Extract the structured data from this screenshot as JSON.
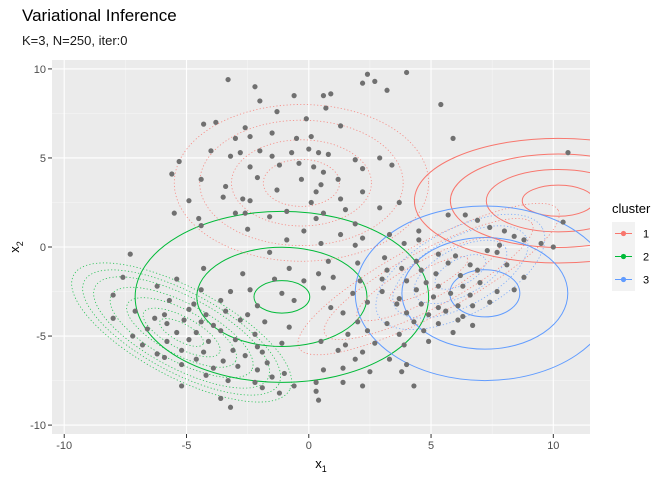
{
  "chart_data": {
    "type": "scatter",
    "title": "Variational Inference",
    "subtitle": "K=3, N=250, iter:0",
    "xlabel": {
      "base": "x",
      "sub": "1"
    },
    "ylabel": {
      "base": "x",
      "sub": "2"
    },
    "xlim": [
      -10.5,
      11.5
    ],
    "ylim": [
      -10.5,
      10.5
    ],
    "xticks": [
      -10,
      -5,
      0,
      5,
      10
    ],
    "yticks": [
      -10,
      -5,
      0,
      5,
      10
    ],
    "xtick_labels": [
      "-10",
      "-5",
      "0",
      "5",
      "10"
    ],
    "ytick_labels": [
      "-10",
      "-5",
      "0",
      "5",
      "10"
    ],
    "grid": true,
    "legend": {
      "title": "cluster",
      "position": "right",
      "entries": [
        {
          "label": "1",
          "color": "#F8766D"
        },
        {
          "label": "2",
          "color": "#00BA38"
        },
        {
          "label": "3",
          "color": "#619CFF"
        }
      ]
    },
    "point_color": "#707070",
    "points": [
      [
        -3.3,
        9.4
      ],
      [
        -2.2,
        9.0
      ],
      [
        -0.6,
        8.5
      ],
      [
        0.6,
        8.5
      ],
      [
        0.9,
        8.6
      ],
      [
        -2.0,
        8.2
      ],
      [
        -1.3,
        7.6
      ],
      [
        -0.1,
        7.2
      ],
      [
        -3.8,
        7.0
      ],
      [
        -4.3,
        6.9
      ],
      [
        -2.6,
        6.7
      ],
      [
        -3.0,
        6.1
      ],
      [
        -1.5,
        6.4
      ],
      [
        -2.4,
        6.2
      ],
      [
        -0.5,
        6.1
      ],
      [
        0.1,
        6.2
      ],
      [
        1.3,
        6.8
      ],
      [
        2.2,
        9.2
      ],
      [
        2.4,
        9.7
      ],
      [
        2.7,
        9.3
      ],
      [
        4.0,
        9.8
      ],
      [
        3.2,
        8.8
      ],
      [
        5.4,
        8.0
      ],
      [
        -4.0,
        5.4
      ],
      [
        -3.2,
        5.1
      ],
      [
        -2.8,
        5.3
      ],
      [
        -2.0,
        5.4
      ],
      [
        -1.5,
        5.1
      ],
      [
        -0.7,
        5.3
      ],
      [
        0.0,
        5.5
      ],
      [
        0.4,
        5.3
      ],
      [
        0.8,
        5.2
      ],
      [
        -5.3,
        4.8
      ],
      [
        -5.6,
        4.1
      ],
      [
        -2.4,
        4.5
      ],
      [
        -1.2,
        4.6
      ],
      [
        -0.4,
        4.7
      ],
      [
        0.2,
        4.5
      ],
      [
        0.6,
        4.2
      ],
      [
        1.9,
        4.9
      ],
      [
        2.2,
        4.4
      ],
      [
        2.9,
        5.0
      ],
      [
        3.4,
        4.6
      ],
      [
        -4.4,
        3.8
      ],
      [
        -3.4,
        3.4
      ],
      [
        -2.1,
        3.9
      ],
      [
        -0.3,
        3.8
      ],
      [
        0.5,
        3.5
      ],
      [
        1.2,
        3.8
      ],
      [
        -3.5,
        2.8
      ],
      [
        -2.4,
        2.6
      ],
      [
        -1.3,
        3.2
      ],
      [
        0.3,
        3.1
      ],
      [
        1.3,
        2.7
      ],
      [
        2.2,
        3.1
      ],
      [
        -4.9,
        2.6
      ],
      [
        -3.0,
        1.9
      ],
      [
        -0.9,
        2.0
      ],
      [
        0.1,
        2.5
      ],
      [
        0.6,
        1.9
      ],
      [
        1.5,
        2.1
      ],
      [
        2.9,
        2.2
      ],
      [
        3.7,
        2.5
      ],
      [
        -5.5,
        1.9
      ],
      [
        -4.5,
        1.6
      ],
      [
        -2.6,
        1.9
      ],
      [
        -1.6,
        1.7
      ],
      [
        0.3,
        1.6
      ],
      [
        1.9,
        1.3
      ],
      [
        -4.4,
        1.2
      ],
      [
        -2.5,
        1.0
      ],
      [
        -0.2,
        0.9
      ],
      [
        1.3,
        0.7
      ],
      [
        2.2,
        0.5
      ],
      [
        3.3,
        0.7
      ],
      [
        4.5,
        0.9
      ],
      [
        -0.9,
        0.4
      ],
      [
        0.5,
        0.2
      ],
      [
        1.9,
        0.1
      ],
      [
        3.9,
        0.2
      ],
      [
        4.5,
        0.4
      ],
      [
        5.7,
        1.8
      ],
      [
        5.9,
        6.1
      ],
      [
        10.4,
        1.4
      ],
      [
        10.6,
        5.3
      ],
      [
        6.4,
        1.8
      ],
      [
        6.9,
        1.5
      ],
      [
        7.4,
        1.1
      ],
      [
        8.0,
        0.9
      ],
      [
        8.4,
        0.6
      ],
      [
        8.8,
        0.4
      ],
      [
        9.5,
        0.2
      ],
      [
        10.0,
        0.0
      ],
      [
        7.3,
        -0.2
      ],
      [
        7.8,
        0.1
      ],
      [
        -7.3,
        -0.4
      ],
      [
        -1.6,
        -0.3
      ],
      [
        0.8,
        -0.8
      ],
      [
        2.0,
        -0.9
      ],
      [
        3.1,
        -0.6
      ],
      [
        4.4,
        -0.8
      ],
      [
        5.3,
        -0.4
      ],
      [
        5.7,
        -0.9
      ],
      [
        6.6,
        -1.0
      ],
      [
        7.7,
        -0.3
      ],
      [
        -4.3,
        -1.2
      ],
      [
        -0.8,
        -1.2
      ],
      [
        0.4,
        -1.5
      ],
      [
        3.2,
        -1.3
      ],
      [
        3.8,
        -1.2
      ],
      [
        4.6,
        -1.3
      ],
      [
        5.2,
        -1.5
      ],
      [
        6.2,
        -1.6
      ],
      [
        6.9,
        -1.3
      ],
      [
        8.1,
        -1.0
      ],
      [
        -7.6,
        -1.7
      ],
      [
        -5.4,
        -1.8
      ],
      [
        -2.7,
        -1.5
      ],
      [
        -1.4,
        -1.8
      ],
      [
        -0.2,
        -1.9
      ],
      [
        1.0,
        -1.7
      ],
      [
        2.1,
        -1.9
      ],
      [
        3.0,
        -1.8
      ],
      [
        4.0,
        -1.9
      ],
      [
        4.8,
        -2.0
      ],
      [
        5.3,
        -2.2
      ],
      [
        6.3,
        -2.2
      ],
      [
        7.0,
        -2.0
      ],
      [
        -6.2,
        -2.2
      ],
      [
        -4.4,
        -2.4
      ],
      [
        -3.2,
        -2.5
      ],
      [
        -2.4,
        -2.4
      ],
      [
        -1.1,
        -2.6
      ],
      [
        0.6,
        -2.3
      ],
      [
        1.8,
        -2.6
      ],
      [
        3.0,
        -2.5
      ],
      [
        4.4,
        -2.4
      ],
      [
        5.1,
        -2.8
      ],
      [
        5.8,
        -2.6
      ],
      [
        6.6,
        -2.7
      ],
      [
        7.7,
        -2.5
      ],
      [
        8.4,
        -2.4
      ],
      [
        -8.0,
        -2.7
      ],
      [
        -5.7,
        -3.0
      ],
      [
        -4.7,
        -3.2
      ],
      [
        -3.6,
        -3.0
      ],
      [
        -2.1,
        -3.3
      ],
      [
        -0.6,
        -3.0
      ],
      [
        0.9,
        -3.4
      ],
      [
        2.4,
        -3.1
      ],
      [
        3.6,
        -3.2
      ],
      [
        4.6,
        -3.2
      ],
      [
        5.3,
        -3.4
      ],
      [
        6.1,
        -3.3
      ],
      [
        6.7,
        -3.3
      ],
      [
        7.4,
        -3.1
      ],
      [
        -7.1,
        -3.6
      ],
      [
        -5.9,
        -3.8
      ],
      [
        -4.9,
        -3.5
      ],
      [
        -4.2,
        -3.8
      ],
      [
        -3.4,
        -3.6
      ],
      [
        -2.5,
        -3.8
      ],
      [
        1.4,
        -3.7
      ],
      [
        4.0,
        -3.7
      ],
      [
        4.9,
        -3.8
      ],
      [
        5.6,
        -3.6
      ],
      [
        6.3,
        -3.9
      ],
      [
        -6.3,
        -4.0
      ],
      [
        -5.8,
        -4.3
      ],
      [
        -5.1,
        -4.1
      ],
      [
        -4.4,
        -4.2
      ],
      [
        -3.9,
        -4.4
      ],
      [
        -2.8,
        -4.1
      ],
      [
        -1.8,
        -4.2
      ],
      [
        -0.8,
        -4.5
      ],
      [
        2.0,
        -4.2
      ],
      [
        3.2,
        -4.3
      ],
      [
        4.3,
        -4.2
      ],
      [
        5.3,
        -4.3
      ],
      [
        6.1,
        -4.1
      ],
      [
        6.7,
        -4.4
      ],
      [
        -8.0,
        -4.0
      ],
      [
        -6.6,
        -4.6
      ],
      [
        -5.4,
        -4.8
      ],
      [
        -4.6,
        -4.8
      ],
      [
        -3.6,
        -4.7
      ],
      [
        -2.2,
        -4.9
      ],
      [
        1.6,
        -4.9
      ],
      [
        2.4,
        -4.7
      ],
      [
        3.7,
        -4.9
      ],
      [
        4.7,
        -4.7
      ],
      [
        5.9,
        -4.8
      ],
      [
        -7.2,
        -5.0
      ],
      [
        -5.8,
        -5.3
      ],
      [
        -4.9,
        -5.2
      ],
      [
        -4.1,
        -5.3
      ],
      [
        -3.0,
        -5.2
      ],
      [
        -2.1,
        -5.6
      ],
      [
        -1.1,
        -5.4
      ],
      [
        0.5,
        -5.3
      ],
      [
        1.5,
        -5.5
      ],
      [
        2.7,
        -5.4
      ],
      [
        3.9,
        -5.5
      ],
      [
        4.9,
        -5.3
      ],
      [
        -6.8,
        -5.5
      ],
      [
        -5.2,
        -5.8
      ],
      [
        -4.3,
        -5.9
      ],
      [
        -3.1,
        -5.8
      ],
      [
        -1.9,
        -5.9
      ],
      [
        1.2,
        -5.8
      ],
      [
        2.2,
        -5.9
      ],
      [
        -6.2,
        -6.0
      ],
      [
        -5.9,
        -6.2
      ],
      [
        -4.6,
        -6.3
      ],
      [
        -3.5,
        -6.4
      ],
      [
        -2.6,
        -6.1
      ],
      [
        -1.7,
        -6.5
      ],
      [
        1.9,
        -6.3
      ],
      [
        3.3,
        -6.3
      ],
      [
        4.0,
        -6.6
      ],
      [
        -5.2,
        -6.6
      ],
      [
        -3.9,
        -6.8
      ],
      [
        -2.9,
        -6.7
      ],
      [
        -2.1,
        -6.9
      ],
      [
        -1.0,
        -7.1
      ],
      [
        0.6,
        -6.9
      ],
      [
        1.4,
        -6.8
      ],
      [
        2.5,
        -7.0
      ],
      [
        3.8,
        -7.0
      ],
      [
        -4.2,
        -7.2
      ],
      [
        -3.3,
        -7.5
      ],
      [
        -2.2,
        -7.6
      ],
      [
        -1.5,
        -7.3
      ],
      [
        -0.6,
        -7.8
      ],
      [
        0.3,
        -7.6
      ],
      [
        1.4,
        -7.6
      ],
      [
        2.2,
        -7.8
      ],
      [
        4.3,
        -7.8
      ],
      [
        -5.2,
        -7.8
      ],
      [
        -1.2,
        -8.2
      ],
      [
        0.3,
        -8.1
      ],
      [
        -3.6,
        -8.5
      ],
      [
        0.4,
        -8.6
      ],
      [
        -3.2,
        -9.0
      ],
      [
        -1.9,
        -7.9
      ],
      [
        3.7,
        -2.9
      ],
      [
        -2.7,
        2.7
      ],
      [
        0.7,
        7.8
      ],
      [
        6.0,
        -0.5
      ],
      [
        8.8,
        -1.7
      ]
    ],
    "components": [
      {
        "cluster": "1",
        "style": "solid",
        "center": [
          10.2,
          2.6
        ],
        "axis_a": 4.2,
        "axis_b": 2.5,
        "angle": 0,
        "scales": [
          0.35,
          0.7,
          1.05,
          1.4
        ]
      },
      {
        "cluster": "2",
        "style": "solid",
        "center": [
          -1.1,
          -2.8
        ],
        "axis_a": 6.0,
        "axis_b": 4.8,
        "angle": 0,
        "scales": [
          0.19,
          0.58,
          1.0
        ]
      },
      {
        "cluster": "3",
        "style": "solid",
        "center": [
          7.2,
          -2.6
        ],
        "axis_a": 5.3,
        "axis_b": 4.9,
        "angle": 0,
        "scales": [
          0.27,
          0.64,
          1.0
        ]
      },
      {
        "cluster": "1",
        "style": "dotted",
        "center": [
          -0.3,
          3.6
        ],
        "axis_a": 5.2,
        "axis_b": 4.4,
        "angle": 0,
        "scales": [
          0.3,
          0.55,
          0.8,
          1.0
        ]
      },
      {
        "cluster": "1",
        "style": "dotted",
        "center": [
          4.9,
          -1.8
        ],
        "axis_a": 6.0,
        "axis_b": 2.0,
        "angle": 28,
        "scales": [
          0.3,
          0.55,
          0.8,
          1.0
        ]
      },
      {
        "cluster": "2",
        "style": "dotted",
        "center": [
          -5.2,
          -4.8
        ],
        "axis_a": 5.0,
        "axis_b": 2.5,
        "angle": -28,
        "scales": [
          0.2,
          0.35,
          0.5,
          0.65,
          0.8,
          0.9,
          1.0
        ]
      },
      {
        "cluster": "3",
        "style": "dotted",
        "center": [
          6.2,
          -1.4
        ],
        "axis_a": 3.8,
        "axis_b": 2.4,
        "angle": 28,
        "scales": [
          0.3,
          0.55,
          0.8,
          1.0
        ]
      }
    ]
  }
}
